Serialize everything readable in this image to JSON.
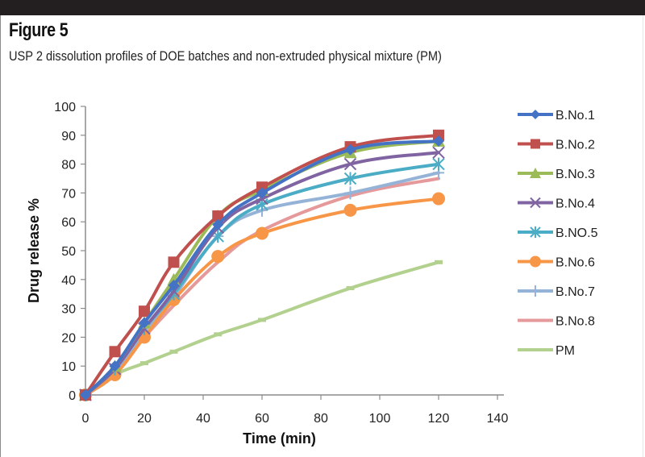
{
  "figure": {
    "title": "Figure 5",
    "caption": "USP 2 dissolution profiles of DOE batches and non-extruded physical mixture (PM)"
  },
  "chart_data": {
    "type": "line",
    "title": "USP 2 dissolution profiles of DOE batches and non-extruded physical mixture (PM)",
    "xlabel": "Time (min)",
    "ylabel": "Drug release %",
    "xlim": [
      0,
      140
    ],
    "ylim": [
      0,
      100
    ],
    "xticks": [
      0,
      20,
      40,
      60,
      80,
      100,
      120,
      140
    ],
    "yticks": [
      0,
      10,
      20,
      30,
      40,
      50,
      60,
      70,
      80,
      90,
      100
    ],
    "grid": false,
    "legend_position": "right",
    "x": [
      0,
      10,
      20,
      30,
      45,
      60,
      90,
      120
    ],
    "series": [
      {
        "name": "B.No.1",
        "color": "#4472c4",
        "marker": "diamond",
        "values": [
          0,
          10,
          25,
          38,
          59,
          70,
          85,
          88
        ]
      },
      {
        "name": "B.No.2",
        "color": "#c0504d",
        "marker": "square",
        "values": [
          0,
          15,
          29,
          46,
          62,
          72,
          86,
          90
        ]
      },
      {
        "name": "B.No.3",
        "color": "#9bbb59",
        "marker": "triangle",
        "values": [
          0,
          10,
          25,
          40,
          62,
          71,
          84,
          88
        ]
      },
      {
        "name": "B.No.4",
        "color": "#8064a2",
        "marker": "x",
        "values": [
          0,
          9,
          23,
          36,
          58,
          68,
          80,
          84
        ]
      },
      {
        "name": "B.NO.5",
        "color": "#4bacc6",
        "marker": "star",
        "values": [
          0,
          9,
          23,
          35,
          55,
          66,
          75,
          80
        ]
      },
      {
        "name": "B.No.6",
        "color": "#f79646",
        "marker": "circle",
        "values": [
          0,
          7,
          20,
          33,
          48,
          56,
          64,
          68
        ]
      },
      {
        "name": "B.No.7",
        "color": "#95b3d7",
        "marker": "plus",
        "values": [
          0,
          8,
          22,
          34,
          55,
          64,
          70,
          77
        ]
      },
      {
        "name": "B.No.8",
        "color": "#e6999a",
        "marker": "none",
        "values": [
          0,
          8,
          20,
          31,
          46,
          57,
          69,
          75
        ]
      },
      {
        "name": "PM",
        "color": "#b2d08e",
        "marker": "dash",
        "values": [
          0,
          7,
          11,
          15,
          21,
          26,
          37,
          46
        ]
      }
    ]
  }
}
